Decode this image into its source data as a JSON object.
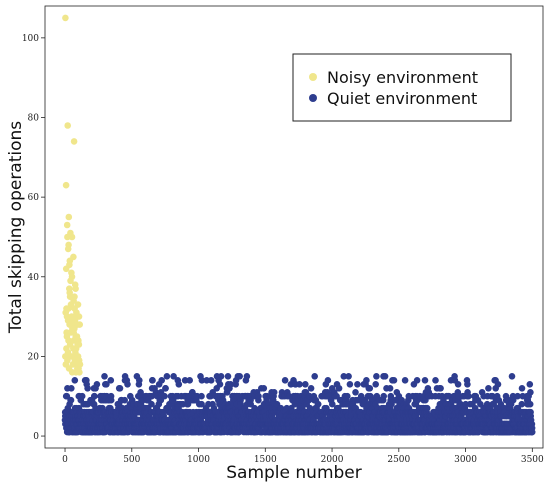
{
  "chart_data": {
    "type": "scatter",
    "xlabel": "Sample number",
    "ylabel": "Total skipping operations",
    "xlim": [
      -150,
      3580
    ],
    "ylim": [
      -3,
      108
    ],
    "xticks": [
      0,
      500,
      1000,
      1500,
      2000,
      2500,
      3000,
      3500
    ],
    "yticks": [
      0,
      20,
      40,
      60,
      80,
      100
    ],
    "legend_position": "top-right",
    "series": [
      {
        "name": "Noisy environment",
        "color": "#F0E68C",
        "x": [
          3,
          8,
          12,
          16,
          20,
          24,
          28,
          32,
          36,
          40,
          44,
          48,
          52,
          56,
          60,
          64,
          68,
          72,
          76,
          80,
          84,
          88,
          92,
          96,
          100,
          104,
          108,
          112,
          2,
          6,
          10,
          14,
          18,
          22,
          26,
          30,
          34,
          38,
          42,
          46,
          50,
          54,
          58,
          62,
          66,
          70,
          74,
          78,
          82,
          86,
          90,
          94,
          98,
          102,
          106,
          110,
          5,
          15,
          25,
          35,
          45,
          55,
          65,
          75,
          85,
          95,
          105,
          9,
          27,
          41,
          63,
          79,
          97,
          18,
          33,
          52,
          71,
          89,
          11,
          23,
          38
        ],
        "y": [
          105,
          63,
          26,
          53,
          78,
          47,
          55,
          37,
          44,
          51,
          35,
          41,
          50,
          29,
          28,
          34,
          74,
          32,
          38,
          25,
          22,
          20,
          17,
          19,
          24,
          23,
          16,
          18,
          20,
          18,
          22,
          25,
          19,
          21,
          24,
          17,
          28,
          23,
          26,
          20,
          30,
          16,
          18,
          22,
          24,
          27,
          19,
          21,
          16,
          18,
          25,
          23,
          20,
          17,
          19,
          28,
          31,
          30,
          32,
          36,
          33,
          27,
          26,
          29,
          31,
          28,
          30,
          42,
          48,
          39,
          45,
          37,
          33,
          50,
          43,
          40,
          35,
          30,
          32,
          29,
          35
        ]
      },
      {
        "name": "Quiet environment",
        "color": "#2E3D8F",
        "x": [],
        "y": []
      }
    ]
  }
}
